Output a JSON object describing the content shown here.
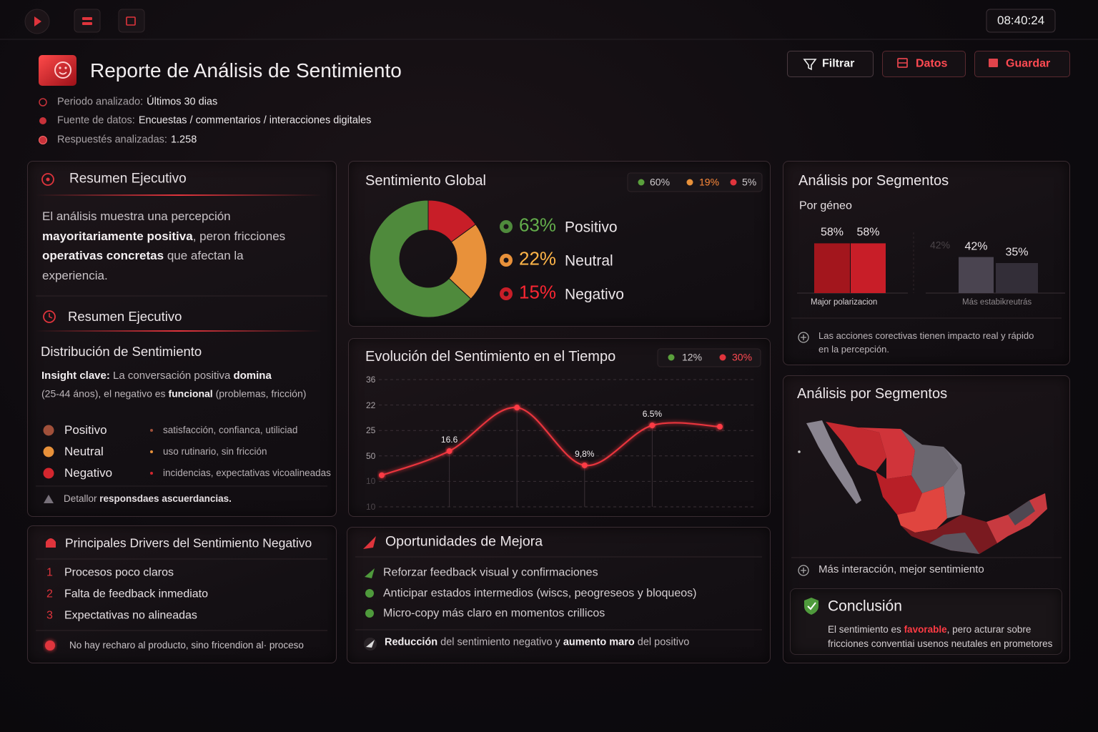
{
  "topbar": {
    "clock": "08:40:24"
  },
  "header": {
    "title": "Reporte de Análisis de Sentimiento",
    "buttons": [
      "Filtrar",
      "Datos",
      "Guardar"
    ],
    "meta": [
      {
        "label": "Periodo analizado:",
        "value": "Últimos 30 dias"
      },
      {
        "label": "Fuente de datos:",
        "value": "Encuestas / commentarios / interacciones digitales"
      },
      {
        "label": "Respuestés analizadas:",
        "value": "1.258"
      }
    ]
  },
  "summary": {
    "title": "Resumen Ejecutivo",
    "paragraph": [
      [
        {
          "t": "El análisis muestra una percepción"
        }
      ],
      [
        {
          "t": "mayoritariamente positiva",
          "b": true
        },
        {
          "t": ", peron fricciones"
        }
      ],
      [
        {
          "t": "operativas concretas",
          "b": true
        },
        {
          "t": " que afectan la"
        }
      ],
      [
        {
          "t": "experiencia."
        }
      ]
    ],
    "subtitle": "Resumen Ejecutivo",
    "distribution_title": "Distribución de Sentimiento",
    "insight": [
      [
        {
          "t": "Insight clave:",
          "b": true
        },
        {
          "t": " La conversación positiva "
        },
        {
          "t": "domina",
          "b": true
        }
      ],
      [
        {
          "t": "(25-44 ános), el negativo es "
        },
        {
          "t": "funcional",
          "b": true
        },
        {
          "t": " (problemas, fricción)"
        }
      ]
    ],
    "items": [
      {
        "label": "Positivo",
        "desc": "satisfacción, confianca, utiliciad",
        "color": "#a0503a"
      },
      {
        "label": "Neutral",
        "desc": "uso rutinario, sin fricción",
        "color": "#e8913a"
      },
      {
        "label": "Negativo",
        "desc": "incidencias, expectativas vicoalineadas",
        "color": "#d3262e"
      }
    ],
    "footer": [
      {
        "t": "Detallor "
      },
      {
        "t": "responsdaes ascuerdancias.",
        "b": true
      }
    ]
  },
  "drivers": {
    "title": "Principales Drivers del Sentimiento Negativo",
    "items": [
      {
        "n": "1",
        "text": "Procesos poco claros"
      },
      {
        "n": "2",
        "text": "Falta de feedback inmediato"
      },
      {
        "n": "3",
        "text": "Expectativas no alineadas"
      }
    ],
    "footer": "No hay recharo al producto, sino fricendion al· proceso"
  },
  "opportunities": {
    "title": "Oportunidades de Mejora",
    "items": [
      "Reforzar feedback visual y confirmaciones",
      "Anticipar estados intermedios (wiscs, peogreseos y bloqueos)",
      "Micro-copy más claro en momentos crillicos"
    ],
    "footer": [
      {
        "t": "Reducción",
        "b": true
      },
      {
        "t": " del sentimiento negativo y "
      },
      {
        "t": "aumento maro",
        "b": true
      },
      {
        "t": " del positivo"
      }
    ]
  },
  "chart_data": [
    {
      "type": "pie",
      "title": "Sentimiento Global",
      "badges": [
        "60%",
        "19%",
        "5%"
      ],
      "categories": [
        "Positivo",
        "Neutral",
        "Negativo"
      ],
      "values": [
        63,
        22,
        15
      ],
      "value_labels": [
        "63%",
        "22%",
        "15%"
      ],
      "colors": [
        "#4f8a3c",
        "#e8913a",
        "#c81e28"
      ]
    },
    {
      "type": "line",
      "title": "Evolución del Sentimiento en el Tiempo",
      "badges": [
        "12%",
        "30%"
      ],
      "y_axis_labels": [
        "36",
        "22",
        "25",
        "50",
        "10",
        "10"
      ],
      "ylim": [
        0,
        5
      ],
      "values": [
        1.24,
        2.19,
        3.9,
        1.63,
        3.2,
        3.15
      ],
      "color": "#e8343c",
      "annotations": [
        {
          "text": "16.6",
          "point": 1
        },
        {
          "text": "9,8%",
          "point": 3
        },
        {
          "text": "6.5%",
          "point": 4
        }
      ]
    },
    {
      "type": "bar",
      "title": "Análisis por Segmentos",
      "subtitle": "Por géneo",
      "values": [
        58,
        58,
        42,
        35
      ],
      "value_labels": [
        "58%",
        "58%",
        "42%",
        "35%"
      ],
      "colors": [
        "#a3161d",
        "#c81e28",
        "#4a4450",
        "#332e38"
      ],
      "ghost_label": "42%",
      "groups": [
        "Major polarizacion",
        "Más estabikreutrás"
      ],
      "note": [
        "Las acciones corectivas tienen impacto real y rápido",
        "en la percepción."
      ]
    }
  ],
  "map_panel": {
    "title": "Análisis por Segmentos",
    "note": "Más interacción, mejor sentimiento",
    "conclusion": {
      "title": "Conclusión",
      "text": [
        [
          {
            "t": "El sentimiento es "
          },
          {
            "t": "favorable",
            "b": true,
            "highlight": true
          },
          {
            "t": ", pero acturar sobre"
          }
        ],
        [
          {
            "t": "fricciones conventiai usenos neutales en prometores"
          }
        ]
      ]
    }
  }
}
